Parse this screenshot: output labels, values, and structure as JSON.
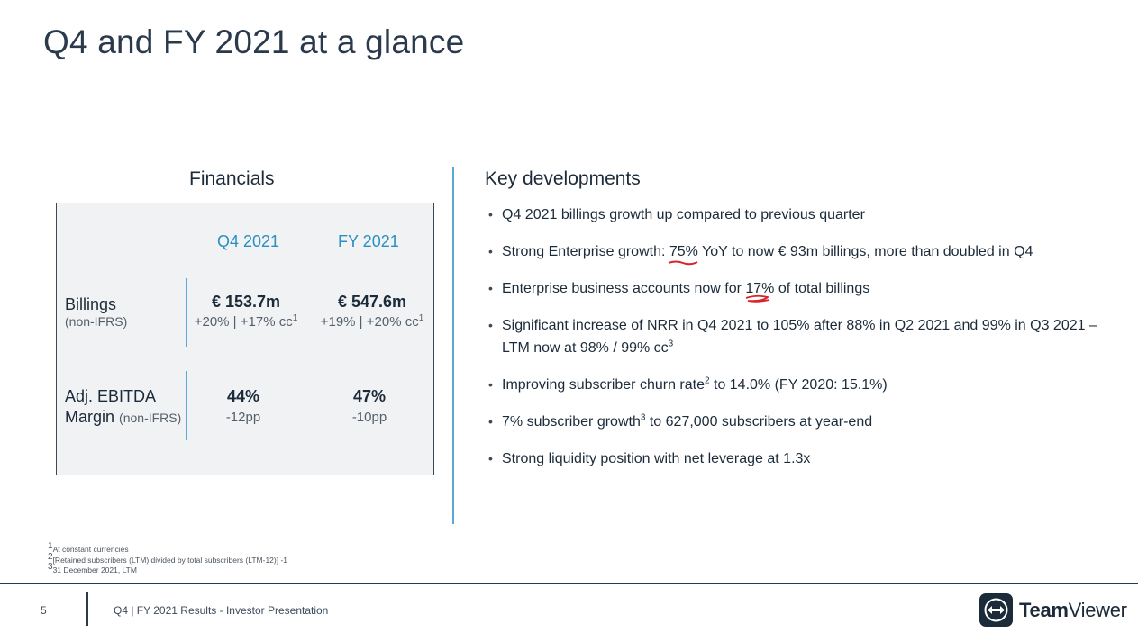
{
  "page": {
    "title": "Q4 and FY 2021 at a glance"
  },
  "financials": {
    "heading": "Financials",
    "columns": [
      "Q4 2021",
      "FY 2021"
    ],
    "billings": {
      "label": "Billings",
      "sublabel": "(non-IFRS)",
      "q4_value": "€ 153.7m",
      "q4_growth": "+20% | +17% cc",
      "fy_value": "€ 547.6m",
      "fy_growth": "+19% | +20% cc",
      "footnote_ref": "1"
    },
    "ebitda": {
      "label_line1": "Adj. EBITDA",
      "label_line2": "Margin",
      "sublabel": "(non-IFRS)",
      "q4_value": "44%",
      "q4_change": "-12pp",
      "fy_value": "47%",
      "fy_change": "-10pp"
    }
  },
  "key_developments": {
    "heading": "Key developments",
    "b1": "Q4 2021 billings growth up compared to previous quarter",
    "b2_pre": "Strong Enterprise growth: ",
    "b2_mark": "75%",
    "b2_post": " YoY to now € 93m billings, more than doubled in Q4",
    "b3_pre": "Enterprise business accounts now for ",
    "b3_mark": "17%",
    "b3_post": " of total billings",
    "b4_pre": "Significant increase of NRR in Q4 2021 to 105% after 88% in Q2 2021 and 99% in Q3 2021 – LTM now at 98% / 99% cc",
    "b4_sup": "3",
    "b5_pre": "Improving subscriber churn rate",
    "b5_sup": "2",
    "b5_post": " to 14.0% (FY 2020: 15.1%)",
    "b6_pre": "7% subscriber growth",
    "b6_sup": "3",
    "b6_post": " to 627,000 subscribers at year-end",
    "b7": "Strong liquidity position with net leverage at 1.3x",
    "annotation_color": "#d8232a"
  },
  "footnotes": {
    "n1_num": "1",
    "n1": "At constant currencies",
    "n2_num": "2",
    "n2": "[Retained subscribers (LTM) divided by total subscribers (LTM-12)] -1",
    "n3_num": "3",
    "n3": "31 December 2021, LTM"
  },
  "footer": {
    "page_number": "5",
    "text": "Q4 | FY 2021 Results - Investor Presentation",
    "logo_bold": "Team",
    "logo_regular": "Viewer",
    "logo_icon": "teamviewer-arrows-icon"
  },
  "colors": {
    "accent": "#2a8fc1",
    "dark": "#1c2b3a",
    "box": "#f1f2f4"
  }
}
